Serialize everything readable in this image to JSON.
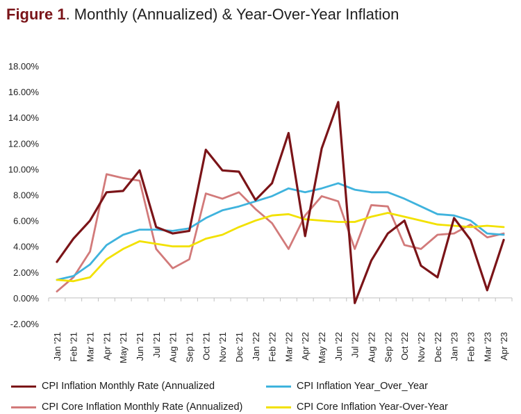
{
  "title": {
    "figure_label": "Figure 1",
    "text": ". Monthly (Annualized) & Year-Over-Year Inflation"
  },
  "chart_data": {
    "type": "line",
    "categories": [
      "Jan '21",
      "Feb '21",
      "Mar '21",
      "Apr '21",
      "May '21",
      "Jun '21",
      "Jul '21",
      "Aug '21",
      "Sep '21",
      "Oct '21",
      "Nov '21",
      "Dec '21",
      "Jan '22",
      "Feb '22",
      "Mar '22",
      "Apr '22",
      "May '22",
      "Jun '22",
      "Jul '22",
      "Aug '22",
      "Sep '22",
      "Oct '22",
      "Nov '22",
      "Dec '22",
      "Jan '23",
      "Feb '23",
      "Mar '23",
      "Apr '23"
    ],
    "y_ticks": [
      "-2.00%",
      "0.00%",
      "2.00%",
      "4.00%",
      "6.00%",
      "8.00%",
      "10.00%",
      "12.00%",
      "14.00%",
      "16.00%",
      "18.00%"
    ],
    "ylim": [
      -2,
      18
    ],
    "grid": false,
    "legend_position": "bottom",
    "series": [
      {
        "name": "CPI Inflation Monthly Rate (Annualized",
        "color": "#7b1418",
        "values": [
          2.8,
          4.6,
          6.0,
          8.2,
          8.3,
          9.9,
          5.5,
          5.0,
          5.2,
          11.5,
          9.9,
          9.8,
          7.6,
          8.9,
          12.8,
          4.8,
          11.6,
          15.2,
          -0.4,
          2.9,
          5.0,
          6.0,
          2.5,
          1.6,
          6.2,
          4.5,
          0.6,
          4.5
        ]
      },
      {
        "name": "CPI Core Inflation Monthly Rate (Annualized)",
        "color": "#d27a7a",
        "values": [
          0.5,
          1.6,
          3.6,
          9.6,
          9.3,
          9.1,
          3.8,
          2.3,
          3.0,
          8.1,
          7.7,
          8.2,
          6.9,
          5.8,
          3.8,
          6.4,
          7.9,
          7.5,
          3.8,
          7.2,
          7.1,
          4.1,
          3.8,
          4.9,
          5.0,
          5.7,
          4.7,
          5.0
        ]
      },
      {
        "name": "CPI Inflation Year_Over_Year",
        "color": "#3fb3dd",
        "values": [
          1.4,
          1.7,
          2.6,
          4.1,
          4.9,
          5.3,
          5.3,
          5.2,
          5.4,
          6.2,
          6.8,
          7.1,
          7.5,
          7.9,
          8.5,
          8.2,
          8.5,
          8.9,
          8.4,
          8.2,
          8.2,
          7.7,
          7.1,
          6.5,
          6.4,
          6.0,
          5.0,
          4.9
        ]
      },
      {
        "name": "CPI Core Inflation Year-Over-Year",
        "color": "#f2e100",
        "values": [
          1.4,
          1.3,
          1.6,
          3.0,
          3.8,
          4.4,
          4.2,
          4.0,
          4.0,
          4.6,
          4.9,
          5.5,
          6.0,
          6.4,
          6.5,
          6.1,
          6.0,
          5.9,
          5.9,
          6.3,
          6.6,
          6.3,
          6.0,
          5.7,
          5.6,
          5.5,
          5.6,
          5.5
        ]
      }
    ]
  }
}
